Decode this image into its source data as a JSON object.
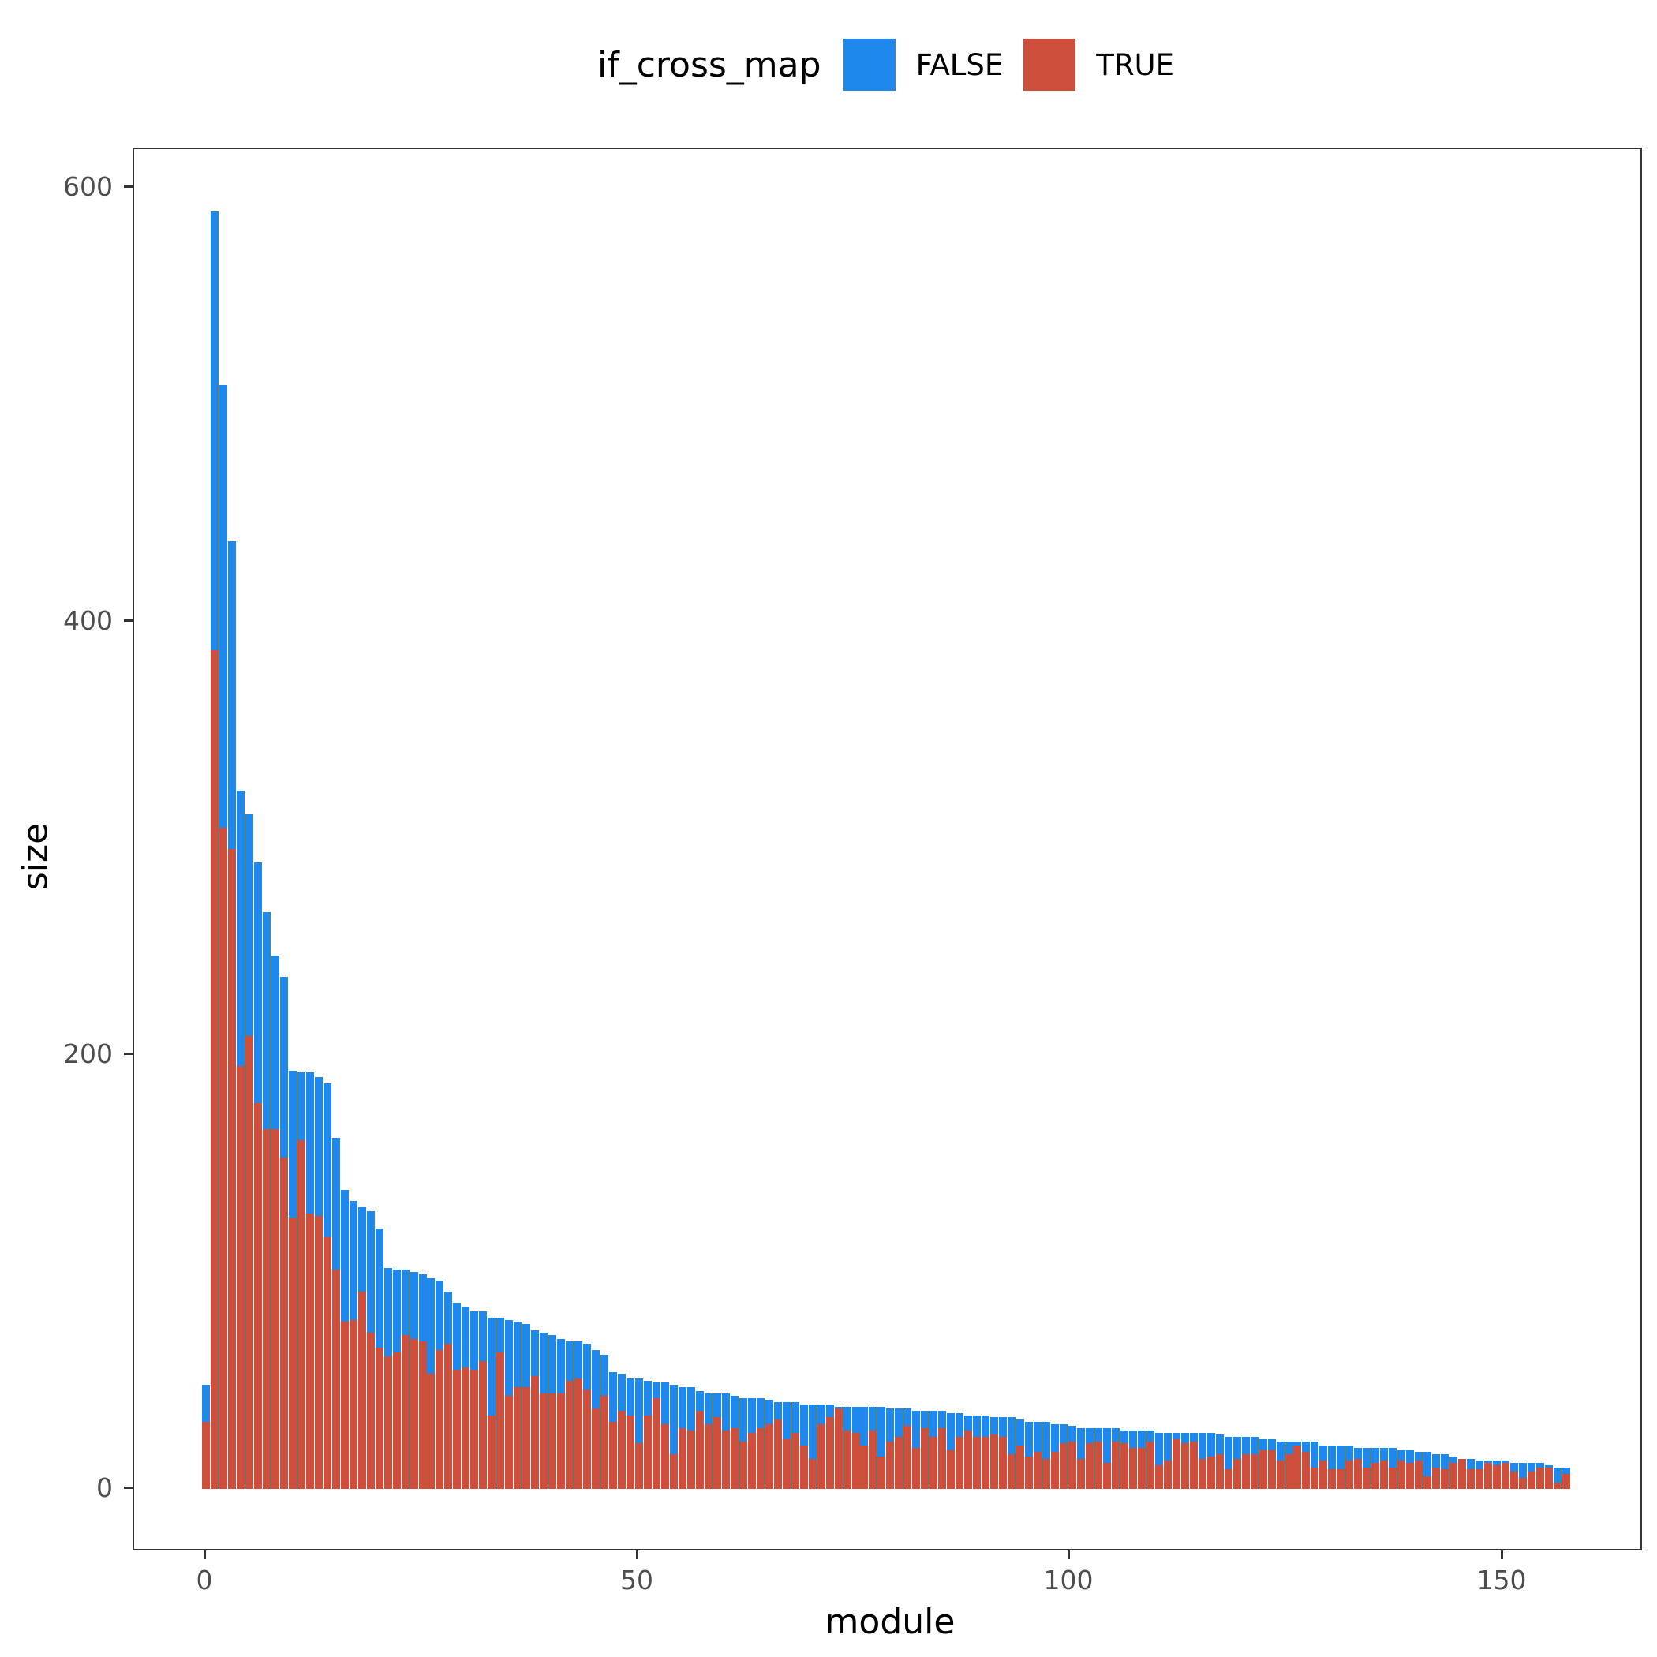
{
  "chart_data": {
    "type": "bar",
    "stacked": true,
    "title": "",
    "xlabel": "module",
    "ylabel": "size",
    "xlim": [
      -8,
      164
    ],
    "ylim": [
      -28,
      648
    ],
    "x_ticks": [
      0,
      50,
      100,
      150
    ],
    "y_ticks": [
      0,
      200,
      400,
      600
    ],
    "grid": false,
    "legend": {
      "title": "if_cross_map",
      "position": "top",
      "entries": [
        "FALSE",
        "TRUE"
      ]
    },
    "colors": {
      "FALSE": "#1E88EC",
      "TRUE": "#CD4F3B"
    },
    "x": [
      0,
      1,
      2,
      3,
      4,
      5,
      6,
      7,
      8,
      9,
      10,
      11,
      12,
      13,
      14,
      15,
      16,
      17,
      18,
      19,
      20,
      21,
      22,
      23,
      24,
      25,
      26,
      27,
      28,
      29,
      30,
      31,
      32,
      33,
      34,
      35,
      36,
      37,
      38,
      39,
      40,
      41,
      42,
      43,
      44,
      45,
      46,
      47,
      48,
      49,
      50,
      51,
      52,
      53,
      54,
      55,
      56,
      57,
      58,
      59,
      60,
      61,
      62,
      63,
      64,
      65,
      66,
      67,
      68,
      69,
      70,
      71,
      72,
      73,
      74,
      75,
      76,
      77,
      78,
      79,
      80,
      81,
      82,
      83,
      84,
      85,
      86,
      87,
      88,
      89,
      90,
      91,
      92,
      93,
      94,
      95,
      96,
      97,
      98,
      99,
      100,
      101,
      102,
      103,
      104,
      105,
      106,
      107,
      108,
      109,
      110,
      111,
      112,
      113,
      114,
      115,
      116,
      117,
      118,
      119,
      120,
      121,
      122,
      123,
      124,
      125,
      126,
      127,
      128,
      129,
      130,
      131,
      132,
      133,
      134,
      135,
      136,
      137,
      138,
      139,
      140,
      141,
      142,
      143,
      144,
      145,
      146,
      147,
      148,
      149,
      150,
      151,
      152,
      153,
      154,
      155,
      156,
      157
    ],
    "totals": [
      48,
      589,
      509,
      437,
      322,
      311,
      289,
      266,
      246,
      236,
      193,
      192,
      192,
      190,
      187,
      162,
      138,
      133,
      130,
      128,
      120,
      102,
      101,
      101,
      100,
      99,
      97,
      96,
      91,
      86,
      84,
      82,
      82,
      79,
      79,
      78,
      77,
      76,
      73,
      72,
      71,
      69,
      68,
      68,
      67,
      64,
      62,
      54,
      53,
      51,
      51,
      50,
      49,
      49,
      48,
      47,
      47,
      45,
      44,
      44,
      44,
      43,
      42,
      42,
      42,
      41,
      40,
      40,
      40,
      39,
      39,
      39,
      39,
      38,
      38,
      38,
      38,
      38,
      38,
      37,
      37,
      37,
      36,
      36,
      36,
      36,
      35,
      35,
      34,
      34,
      34,
      33,
      33,
      33,
      32,
      31,
      31,
      31,
      30,
      30,
      29,
      28,
      28,
      28,
      28,
      28,
      27,
      27,
      27,
      27,
      26,
      26,
      26,
      26,
      26,
      26,
      26,
      25,
      24,
      24,
      24,
      24,
      23,
      23,
      22,
      22,
      22,
      22,
      22,
      20,
      20,
      20,
      20,
      19,
      19,
      19,
      19,
      19,
      18,
      18,
      17,
      17,
      16,
      16,
      15,
      14,
      14,
      13,
      13,
      13,
      13,
      12,
      12,
      12,
      12,
      11,
      10,
      10
    ],
    "series": [
      {
        "name": "TRUE",
        "values": [
          31,
          387,
          305,
          295,
          195,
          209,
          178,
          166,
          166,
          153,
          125,
          161,
          127,
          126,
          116,
          101,
          77,
          78,
          91,
          72,
          65,
          61,
          63,
          71,
          69,
          68,
          53,
          64,
          67,
          55,
          56,
          55,
          59,
          34,
          63,
          43,
          47,
          47,
          52,
          44,
          44,
          44,
          50,
          51,
          46,
          37,
          43,
          31,
          36,
          34,
          21,
          34,
          42,
          30,
          16,
          28,
          27,
          36,
          30,
          33,
          27,
          28,
          22,
          26,
          28,
          30,
          32,
          23,
          26,
          20,
          14,
          30,
          33,
          37,
          27,
          26,
          20,
          27,
          15,
          22,
          24,
          29,
          19,
          28,
          24,
          28,
          18,
          24,
          27,
          24,
          24,
          25,
          24,
          16,
          20,
          15,
          17,
          14,
          17,
          21,
          22,
          14,
          21,
          22,
          12,
          22,
          21,
          19,
          19,
          22,
          11,
          13,
          23,
          21,
          22,
          14,
          15,
          16,
          9,
          14,
          16,
          16,
          18,
          18,
          13,
          16,
          20,
          17,
          10,
          13,
          9,
          9,
          13,
          14,
          10,
          12,
          13,
          10,
          13,
          12,
          13,
          6,
          10,
          9,
          12,
          14,
          9,
          9,
          12,
          11,
          12,
          8,
          5,
          8,
          10,
          10,
          3,
          7
        ]
      },
      {
        "name": "FALSE",
        "values": [
          17,
          202,
          204,
          142,
          127,
          102,
          111,
          100,
          80,
          83,
          68,
          31,
          65,
          64,
          71,
          61,
          61,
          55,
          39,
          56,
          55,
          41,
          38,
          30,
          31,
          31,
          44,
          32,
          24,
          31,
          28,
          27,
          23,
          45,
          16,
          35,
          30,
          29,
          21,
          28,
          27,
          25,
          18,
          17,
          21,
          27,
          19,
          23,
          17,
          17,
          30,
          16,
          7,
          19,
          32,
          19,
          20,
          9,
          14,
          11,
          17,
          15,
          20,
          16,
          14,
          11,
          8,
          17,
          14,
          19,
          25,
          9,
          6,
          1,
          11,
          12,
          18,
          11,
          23,
          15,
          13,
          8,
          17,
          8,
          12,
          8,
          17,
          11,
          7,
          10,
          10,
          8,
          9,
          17,
          12,
          16,
          14,
          17,
          13,
          9,
          7,
          14,
          7,
          6,
          16,
          6,
          6,
          8,
          8,
          5,
          15,
          13,
          3,
          5,
          4,
          12,
          11,
          9,
          15,
          10,
          8,
          8,
          5,
          5,
          9,
          6,
          2,
          5,
          12,
          7,
          11,
          11,
          7,
          5,
          9,
          7,
          6,
          9,
          5,
          6,
          4,
          11,
          6,
          7,
          3,
          0,
          5,
          4,
          1,
          2,
          1,
          4,
          7,
          4,
          2,
          1,
          7,
          3
        ]
      }
    ]
  },
  "legend": {
    "title": "if_cross_map",
    "items": [
      {
        "label": "FALSE",
        "color": "#1E88EC"
      },
      {
        "label": "TRUE",
        "color": "#CD4F3B"
      }
    ]
  },
  "axes": {
    "xlabel": "module",
    "ylabel": "size",
    "x_tick_labels": [
      "0",
      "50",
      "100",
      "150"
    ],
    "y_tick_labels": [
      "0",
      "200",
      "400",
      "600"
    ]
  }
}
